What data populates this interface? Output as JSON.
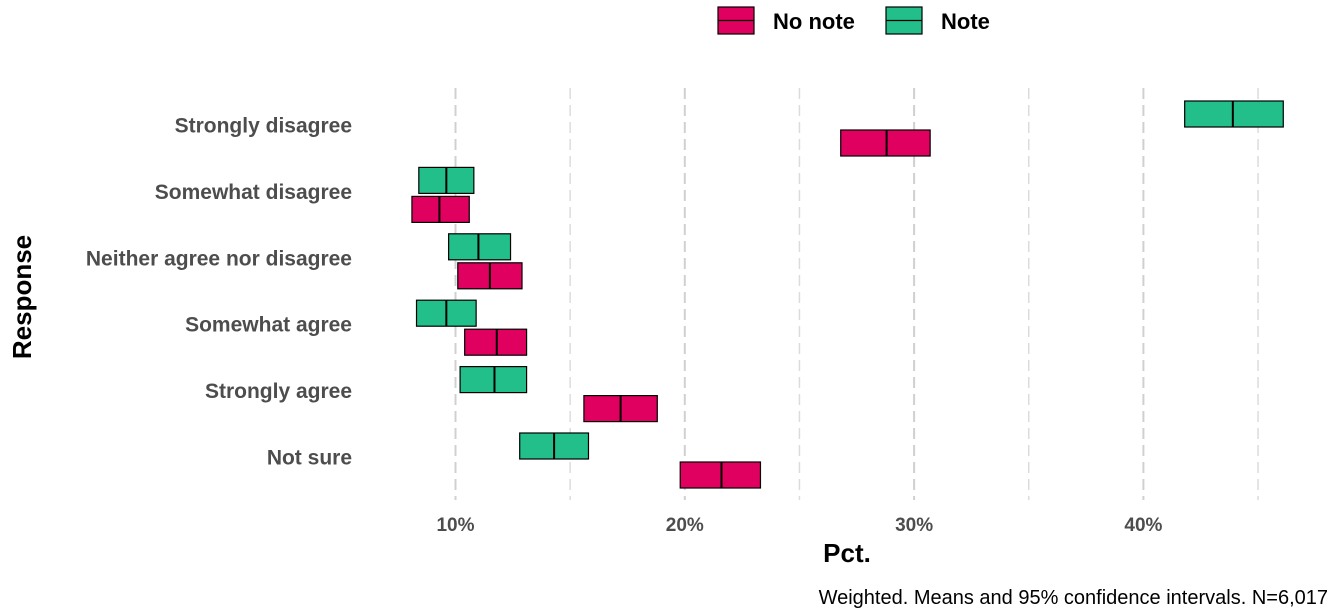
{
  "chart_data": {
    "type": "crossbar",
    "categories": [
      "Strongly disagree",
      "Somewhat disagree",
      "Neither agree nor disagree",
      "Somewhat agree",
      "Strongly agree",
      "Not sure"
    ],
    "series": [
      {
        "name": "No note",
        "color": "#e0005f",
        "mean": [
          28.8,
          9.3,
          11.5,
          11.8,
          17.2,
          21.6
        ],
        "lower": [
          26.8,
          8.1,
          10.1,
          10.4,
          15.6,
          19.8
        ],
        "upper": [
          30.7,
          10.6,
          12.9,
          13.1,
          18.8,
          23.3
        ]
      },
      {
        "name": "Note",
        "color": "#22bf8a",
        "mean": [
          43.9,
          9.6,
          11.0,
          9.6,
          11.7,
          14.3
        ],
        "lower": [
          41.8,
          8.4,
          9.7,
          8.3,
          10.2,
          12.8
        ],
        "upper": [
          46.1,
          10.8,
          12.4,
          10.9,
          13.1,
          15.8
        ]
      }
    ],
    "xlabel": "Pct.",
    "ylabel": "Response",
    "xlim": [
      5.5,
      47
    ],
    "x_ticks": [
      10,
      20,
      30,
      40
    ],
    "x_tick_labels": [
      "10%",
      "20%",
      "30%",
      "40%"
    ],
    "x_minor_ticks": [
      15,
      25,
      35,
      45
    ],
    "grid": "vertical-dashed",
    "legend_position": "top",
    "caption": "Weighted. Means and 95% confidence intervals. N=6,017"
  }
}
